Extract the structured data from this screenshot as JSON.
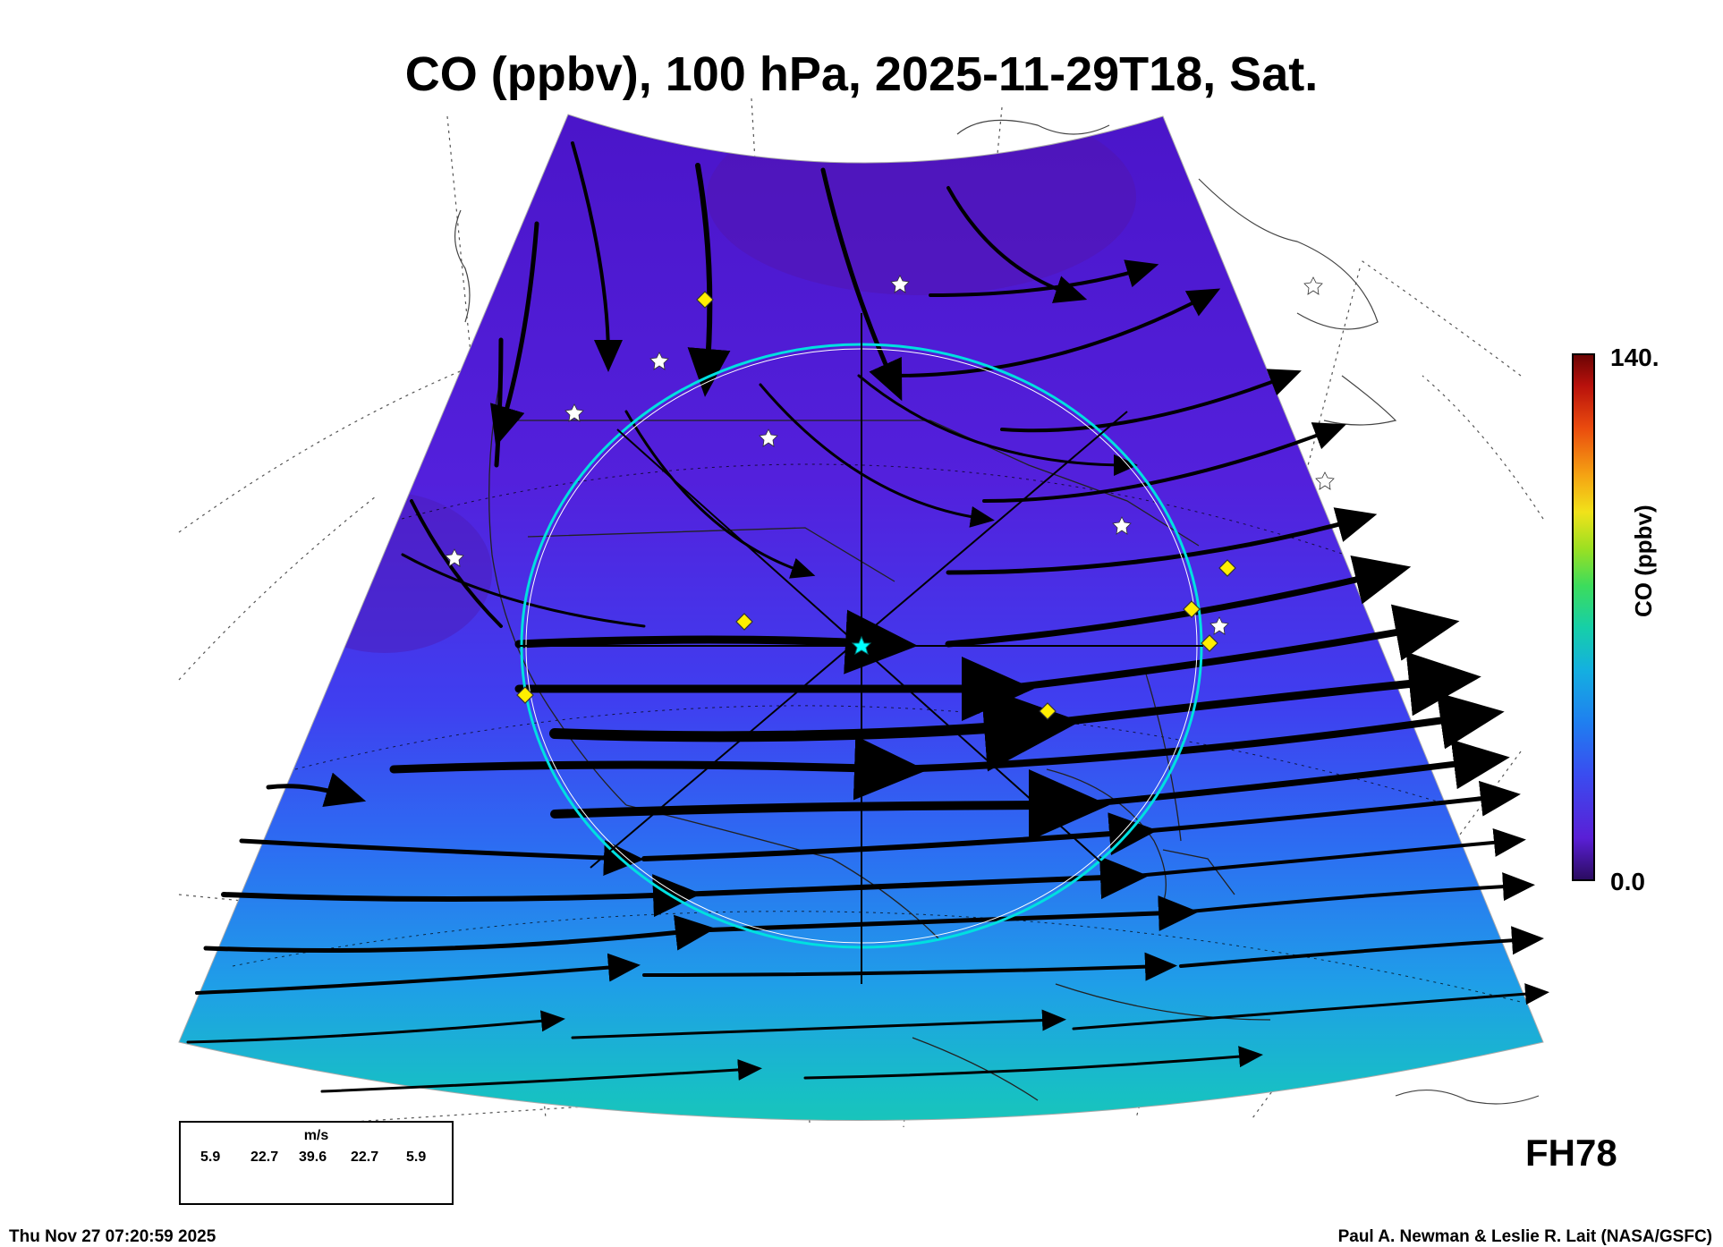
{
  "title": "CO (ppbv), 100 hPa, 2025-11-29T18, Sat.",
  "colorbar": {
    "max_label": "140.",
    "min_label": "0.0",
    "title": "CO (ppbv)",
    "colors": [
      "#2a0b5e",
      "#5a1fd6",
      "#3a4cf0",
      "#1f7ff0",
      "#14b0e0",
      "#16cfa8",
      "#3cdc5c",
      "#9be022",
      "#f1e21a",
      "#f5a313",
      "#ea4b0e",
      "#b8110c",
      "#6a0404"
    ]
  },
  "forecast_hour": "FH78",
  "legend": {
    "unit": "m/s",
    "values": [
      "5.9",
      "22.7",
      "39.6",
      "22.7",
      "5.9"
    ]
  },
  "footer": {
    "timestamp": "Thu Nov 27 07:20:59 2025",
    "credit": "Paul A. Newman & Leslie R. Lait (NASA/GSFC)"
  },
  "map": {
    "field": "CO concentration",
    "range_ppbv": [
      0,
      140
    ],
    "markers": {
      "star": "white-star",
      "diamond": "yellow-diamond",
      "center": "cyan-star",
      "ring": "cyan-circle"
    }
  }
}
